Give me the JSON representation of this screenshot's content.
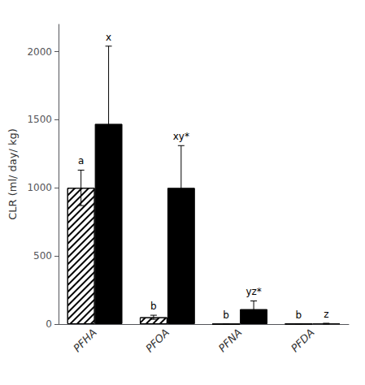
{
  "chart_data": {
    "type": "bar",
    "categories": [
      "PFHA",
      "PFOA",
      "PFNA",
      "PFDA"
    ],
    "series": [
      {
        "color": "white",
        "values": [
          1000,
          50,
          0,
          2
        ],
        "errors": [
          130,
          15,
          0,
          0
        ],
        "annotations": [
          "a",
          "b",
          "b",
          "b"
        ]
      },
      {
        "color": "black",
        "values": [
          1470,
          1000,
          110,
          3
        ],
        "errors": [
          570,
          310,
          60,
          3
        ],
        "annotations": [
          "x",
          "xy*",
          "yz*",
          "z"
        ]
      }
    ],
    "ylabel": "CLR (ml/ day/ kg)",
    "ylim": [
      0,
      2200
    ],
    "yticks": [
      0,
      500,
      1000,
      1500,
      2000
    ],
    "grid": false
  }
}
